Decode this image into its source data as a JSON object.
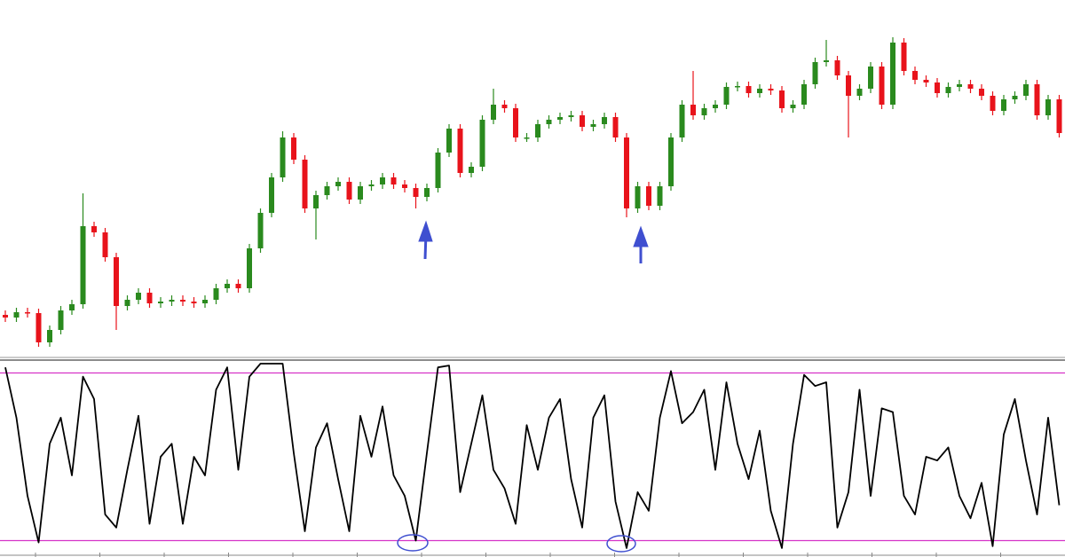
{
  "chart_data": [
    {
      "type": "candlestick",
      "up_color": "#2a8a1e",
      "down_color": "#e8131b",
      "ylim": [
        0,
        400
      ],
      "open": [
        45,
        42,
        48,
        47,
        14,
        28,
        50,
        57,
        145,
        138,
        110,
        55,
        62,
        70,
        58,
        60,
        62,
        60,
        58,
        62,
        75,
        80,
        75,
        120,
        160,
        200,
        245,
        220,
        165,
        180,
        190,
        195,
        175,
        190,
        192,
        200,
        192,
        188,
        178,
        188,
        228,
        255,
        205,
        212,
        265,
        282,
        278,
        245,
        245,
        260,
        265,
        268,
        270,
        257,
        260,
        268,
        245,
        165,
        190,
        168,
        190,
        245,
        282,
        270,
        278,
        282,
        302,
        303,
        295,
        300,
        298,
        278,
        282,
        305,
        330,
        332,
        315,
        292,
        300,
        325,
        282,
        352,
        320,
        310,
        307,
        295,
        302,
        305,
        300,
        292,
        275,
        288,
        292,
        305,
        270,
        288
      ],
      "high": [
        50,
        53,
        53,
        52,
        33,
        55,
        62,
        182,
        150,
        143,
        115,
        67,
        75,
        75,
        65,
        67,
        67,
        65,
        67,
        80,
        85,
        85,
        125,
        165,
        205,
        252,
        250,
        225,
        185,
        195,
        200,
        200,
        195,
        197,
        205,
        205,
        197,
        193,
        193,
        233,
        260,
        260,
        217,
        270,
        300,
        287,
        283,
        250,
        265,
        270,
        273,
        275,
        275,
        265,
        273,
        273,
        250,
        195,
        195,
        195,
        250,
        287,
        320,
        283,
        287,
        307,
        308,
        308,
        305,
        305,
        303,
        287,
        310,
        335,
        355,
        337,
        320,
        305,
        330,
        330,
        358,
        357,
        325,
        315,
        312,
        307,
        310,
        310,
        305,
        297,
        293,
        297,
        310,
        310,
        293,
        293
      ],
      "low": [
        37,
        37,
        42,
        9,
        9,
        23,
        45,
        52,
        133,
        105,
        28,
        50,
        57,
        53,
        53,
        55,
        55,
        53,
        53,
        57,
        70,
        70,
        70,
        115,
        155,
        195,
        215,
        160,
        130,
        175,
        185,
        170,
        170,
        185,
        187,
        187,
        183,
        165,
        173,
        183,
        223,
        200,
        200,
        207,
        260,
        273,
        240,
        240,
        240,
        255,
        260,
        263,
        252,
        252,
        255,
        240,
        155,
        160,
        163,
        163,
        185,
        240,
        265,
        265,
        273,
        277,
        297,
        290,
        290,
        293,
        273,
        273,
        277,
        300,
        325,
        310,
        245,
        287,
        295,
        277,
        277,
        315,
        305,
        302,
        290,
        290,
        297,
        295,
        287,
        270,
        270,
        283,
        287,
        265,
        265,
        245
      ],
      "close": [
        42,
        48,
        47,
        14,
        28,
        50,
        57,
        145,
        138,
        110,
        55,
        62,
        70,
        58,
        60,
        62,
        60,
        58,
        62,
        75,
        80,
        75,
        120,
        160,
        200,
        245,
        220,
        165,
        180,
        190,
        195,
        175,
        190,
        192,
        200,
        192,
        188,
        178,
        188,
        228,
        255,
        205,
        212,
        265,
        282,
        278,
        245,
        245,
        260,
        265,
        268,
        270,
        257,
        260,
        268,
        245,
        165,
        190,
        168,
        190,
        245,
        282,
        270,
        278,
        282,
        302,
        303,
        295,
        300,
        298,
        278,
        282,
        305,
        330,
        332,
        315,
        292,
        300,
        325,
        282,
        352,
        320,
        310,
        307,
        295,
        302,
        305,
        300,
        292,
        275,
        288,
        292,
        305,
        270,
        288,
        250
      ]
    },
    {
      "type": "line",
      "color": "#000000",
      "level_color": "#d633c8",
      "ylim": [
        0,
        100
      ],
      "levels": [
        95,
        5
      ],
      "values": [
        98,
        71,
        29,
        4,
        57,
        71,
        40,
        93,
        81,
        19,
        12,
        43,
        72,
        14,
        50,
        57,
        14,
        50,
        40,
        86,
        98,
        43,
        93,
        100,
        100,
        100,
        52,
        10,
        55,
        68,
        38,
        10,
        72,
        50,
        77,
        40,
        29,
        5,
        52,
        98,
        99,
        31,
        57,
        83,
        43,
        33,
        14,
        67,
        43,
        71,
        81,
        38,
        12,
        71,
        83,
        26,
        1,
        31,
        21,
        71,
        96,
        68,
        74,
        86,
        43,
        90,
        57,
        38,
        64,
        21,
        1,
        57,
        94,
        88,
        90,
        12,
        31,
        86,
        29,
        76,
        74,
        29,
        19,
        50,
        48,
        55,
        29,
        17,
        36,
        2,
        62,
        81,
        48,
        19,
        71,
        24
      ]
    }
  ]
}
